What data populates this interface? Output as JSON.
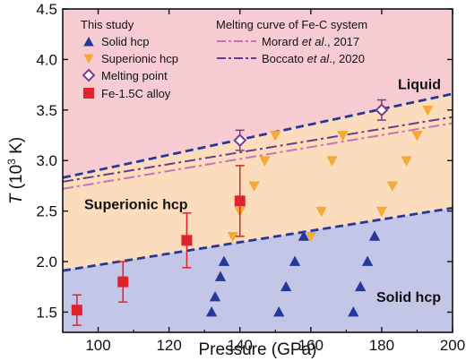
{
  "chart_data": {
    "type": "scatter",
    "xlabel": "Pressure (GPa)",
    "ylabel_prefix": "T",
    "ylabel_suffix": " (10",
    "ylabel_exp": "3",
    "ylabel_unit": " K)",
    "xlim": [
      90,
      200
    ],
    "ylim": [
      1.3,
      4.5
    ],
    "xticks": [
      100,
      120,
      140,
      160,
      180,
      200
    ],
    "xtick_labels": [
      "100",
      "120",
      "140",
      "160",
      "180",
      "200"
    ],
    "yticks": [
      1.5,
      2.0,
      2.5,
      3.0,
      3.5,
      4.0,
      4.5
    ],
    "ytick_labels": [
      "1.5",
      "2.0",
      "2.5",
      "3.0",
      "3.5",
      "4.0",
      "4.5"
    ],
    "region_labels": [
      "Liquid",
      "Superionic hcp",
      "Solid hcp"
    ],
    "region_colors": {
      "liquid": "#f6ccd2",
      "superionic": "#fbdcbd",
      "solid": "#c3c6e6"
    },
    "boundaries": {
      "melting": {
        "x": [
          90,
          200
        ],
        "y": [
          2.83,
          3.66
        ],
        "color": "#27379a"
      },
      "superionic_solid": {
        "x": [
          90,
          200
        ],
        "y": [
          1.91,
          2.53
        ],
        "color": "#27379a"
      }
    },
    "legend": {
      "left_title": "This study",
      "right_title": "Melting curve of Fe-C system",
      "entries": [
        {
          "label": "Solid hcp",
          "marker": "triangle-up",
          "color": "#27379a"
        },
        {
          "label": "Superionic hcp",
          "marker": "triangle-down",
          "color": "#f4a93b"
        },
        {
          "label": "Melting point",
          "marker": "diamond-open",
          "color": "#7a3a93"
        },
        {
          "label": "Fe-1.5C alloy",
          "marker": "square",
          "color": "#e0222a"
        }
      ],
      "line_entries": [
        {
          "label_prefix": "Morard ",
          "label_italic": "et al",
          "label_suffix": "., 2017",
          "color": "#c970b8"
        },
        {
          "label_prefix": "Boccato ",
          "label_italic": "et al",
          "label_suffix": "., 2020",
          "color": "#6a3a8c"
        }
      ]
    },
    "series": [
      {
        "name": "Solid hcp",
        "color": "#27379a",
        "points": [
          {
            "x": 132,
            "y": 1.5
          },
          {
            "x": 133,
            "y": 1.65
          },
          {
            "x": 134.5,
            "y": 1.85
          },
          {
            "x": 135.5,
            "y": 2.0
          },
          {
            "x": 151,
            "y": 1.5
          },
          {
            "x": 153,
            "y": 1.75
          },
          {
            "x": 155.5,
            "y": 2.0
          },
          {
            "x": 158,
            "y": 2.25
          },
          {
            "x": 172,
            "y": 1.5
          },
          {
            "x": 174,
            "y": 1.75
          },
          {
            "x": 176,
            "y": 2.0
          },
          {
            "x": 178,
            "y": 2.25
          }
        ]
      },
      {
        "name": "Superionic hcp",
        "color": "#f4a93b",
        "points": [
          {
            "x": 138,
            "y": 2.25
          },
          {
            "x": 140,
            "y": 2.5
          },
          {
            "x": 144,
            "y": 2.75
          },
          {
            "x": 147,
            "y": 3.0
          },
          {
            "x": 150,
            "y": 3.25
          },
          {
            "x": 160,
            "y": 2.25
          },
          {
            "x": 163,
            "y": 2.5
          },
          {
            "x": 166,
            "y": 3.0
          },
          {
            "x": 169,
            "y": 3.25
          },
          {
            "x": 180,
            "y": 2.5
          },
          {
            "x": 183,
            "y": 2.75
          },
          {
            "x": 187,
            "y": 3.0
          },
          {
            "x": 190,
            "y": 3.25
          },
          {
            "x": 193,
            "y": 3.5
          }
        ]
      },
      {
        "name": "Melting point",
        "color": "#7a3a93",
        "points": [
          {
            "x": 140,
            "y": 3.2,
            "err": 0.1
          },
          {
            "x": 180,
            "y": 3.5,
            "err": 0.1
          }
        ]
      },
      {
        "name": "Fe-1.5C alloy",
        "color": "#e0222a",
        "points": [
          {
            "x": 94,
            "y": 1.52,
            "err": 0.15
          },
          {
            "x": 107,
            "y": 1.8,
            "err": 0.2
          },
          {
            "x": 125,
            "y": 2.21,
            "err": 0.27
          },
          {
            "x": 140,
            "y": 2.6,
            "err": 0.35
          }
        ]
      }
    ],
    "literature_curves": [
      {
        "name": "Morard et al., 2017",
        "x": [
          90,
          200
        ],
        "y": [
          2.72,
          3.37
        ],
        "color": "#c970b8"
      },
      {
        "name": "Boccato et al., 2020",
        "x": [
          90,
          200
        ],
        "y": [
          2.79,
          3.43
        ],
        "color": "#6a3a8c"
      }
    ]
  }
}
